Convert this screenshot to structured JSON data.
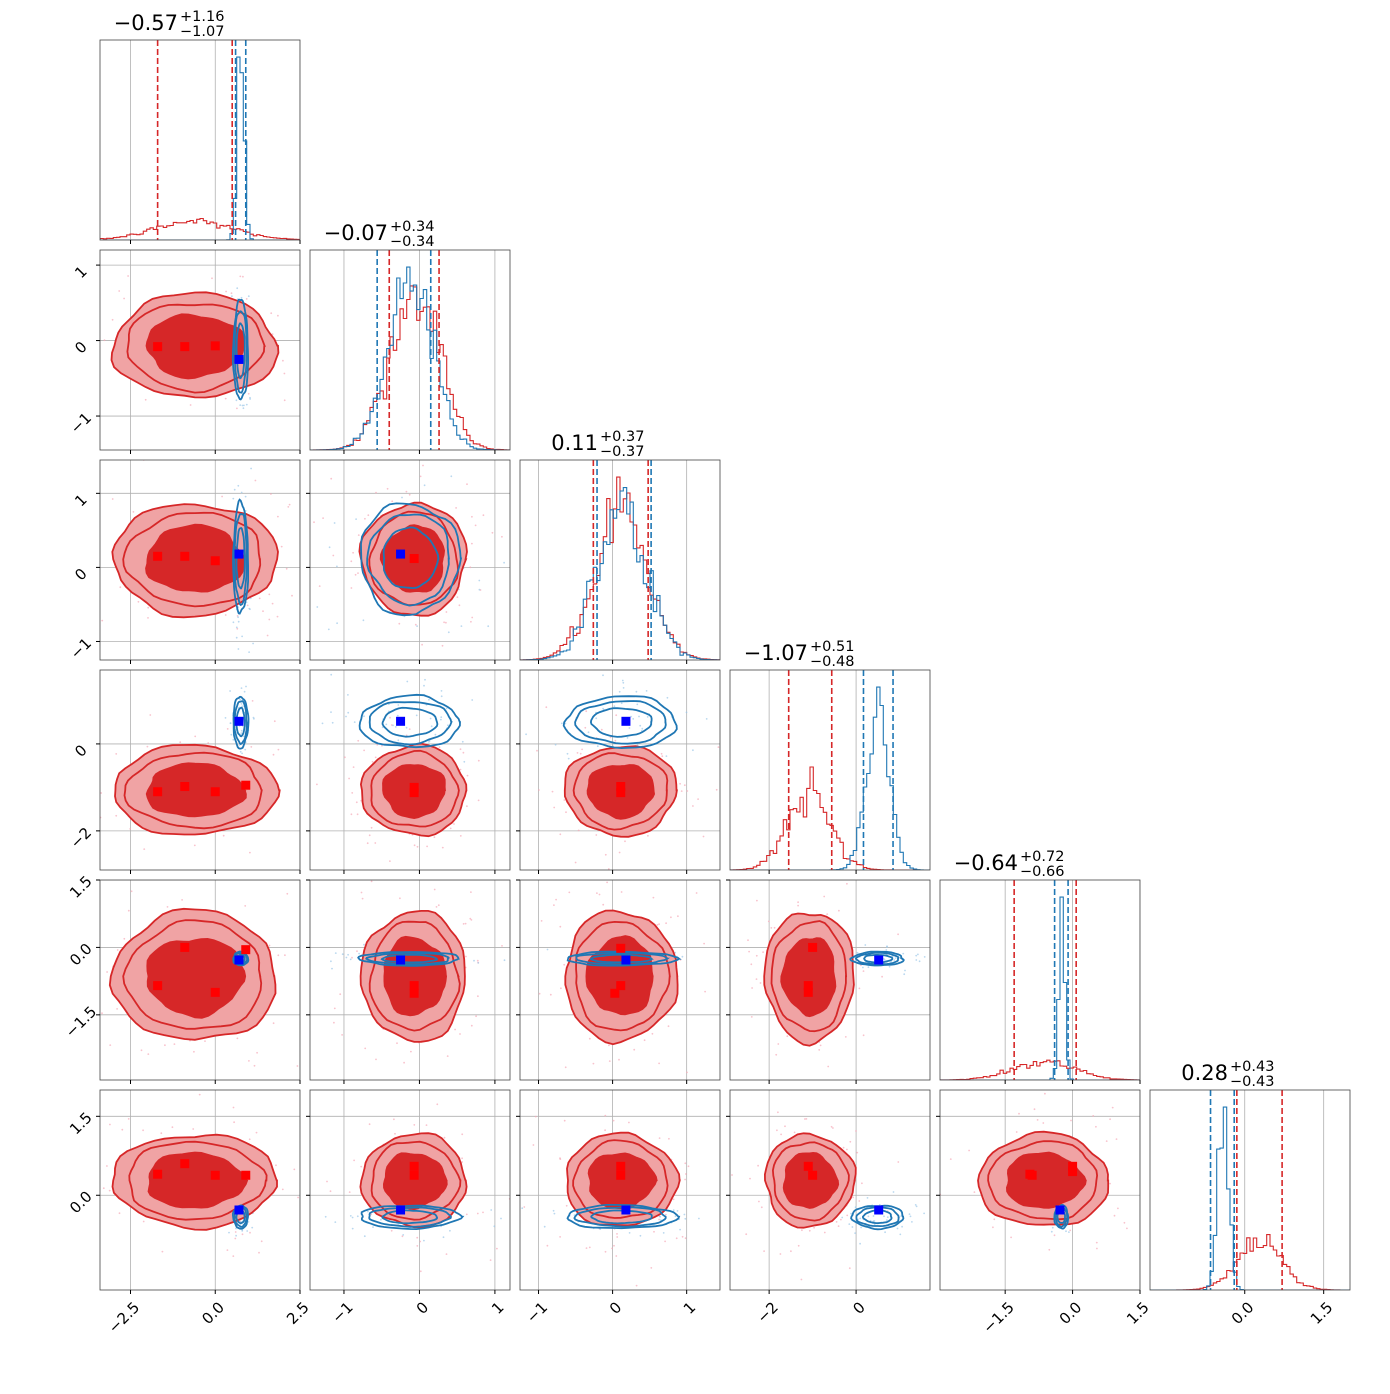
{
  "chart_data": {
    "type": "corner",
    "n_params": 6,
    "grid": true,
    "colors": {
      "red": "#d62728",
      "red_fill_outer": "#f0a3a4",
      "red_fill_mid": "#e45759",
      "blue": "#1f77b4",
      "truth_red": "#ff0000",
      "truth_blue": "#0000ff",
      "axis": "#444444",
      "grid": "#b0b0b0"
    },
    "params": [
      {
        "title_value": "−0.57",
        "title_plus": "+1.16",
        "title_minus": "−1.07",
        "range": [
          -3.4,
          2.5
        ],
        "ticks": [
          -2.5,
          0.0,
          2.5
        ],
        "tick_labels": [
          "−2.5",
          "0.0",
          "2.5"
        ],
        "red": {
          "mean": -0.6,
          "sd": 1.15,
          "q": [
            -1.7,
            0.5
          ]
        },
        "blue": {
          "mean": 0.75,
          "sd": 0.1,
          "q": [
            0.6,
            0.9
          ]
        }
      },
      {
        "title_value": "−0.07",
        "title_plus": "+0.34",
        "title_minus": "−0.34",
        "range": [
          -1.45,
          1.2
        ],
        "ticks": [
          -1,
          0,
          1
        ],
        "tick_labels": [
          "−1",
          "0",
          "1"
        ],
        "red": {
          "mean": -0.07,
          "sd": 0.33,
          "q": [
            -0.4,
            0.26
          ]
        },
        "blue": {
          "mean": -0.13,
          "sd": 0.3,
          "q": [
            -0.56,
            0.15
          ]
        }
      },
      {
        "title_value": "0.11",
        "title_plus": "+0.37",
        "title_minus": "−0.37",
        "range": [
          -1.25,
          1.45
        ],
        "ticks": [
          -1,
          0,
          1
        ],
        "tick_labels": [
          "−1",
          "0",
          "1"
        ],
        "red": {
          "mean": 0.11,
          "sd": 0.36,
          "q": [
            -0.26,
            0.48
          ]
        },
        "blue": {
          "mean": 0.12,
          "sd": 0.34,
          "q": [
            -0.21,
            0.52
          ]
        }
      },
      {
        "title_value": "−1.07",
        "title_plus": "+0.51",
        "title_minus": "−0.48",
        "range": [
          -2.9,
          1.7
        ],
        "ticks": [
          -2,
          0
        ],
        "tick_labels": [
          "−2",
          "0"
        ],
        "red": {
          "mean": -1.07,
          "sd": 0.49,
          "q": [
            -1.55,
            -0.56
          ]
        },
        "blue": {
          "mean": 0.5,
          "sd": 0.27,
          "q": [
            0.17,
            0.85
          ]
        }
      },
      {
        "title_value": "−0.64",
        "title_plus": "+0.72",
        "title_minus": "−0.66",
        "range": [
          -2.95,
          1.5
        ],
        "ticks": [
          -1.5,
          0.0,
          1.5
        ],
        "tick_labels": [
          "−1.5",
          "0.0",
          "1.5"
        ],
        "red": {
          "mean": -0.64,
          "sd": 0.69,
          "q": [
            -1.3,
            0.08
          ]
        },
        "blue": {
          "mean": -0.25,
          "sd": 0.07,
          "q": [
            -0.4,
            -0.1
          ]
        }
      },
      {
        "title_value": "0.28",
        "title_plus": "+0.43",
        "title_minus": "−0.43",
        "range": [
          -1.8,
          2.0
        ],
        "ticks": [
          0.0,
          1.5
        ],
        "tick_labels": [
          "0.0",
          "1.5"
        ],
        "red": {
          "mean": 0.28,
          "sd": 0.42,
          "q": [
            -0.15,
            0.71
          ]
        },
        "blue": {
          "mean": -0.41,
          "sd": 0.1,
          "q": [
            -0.65,
            -0.2
          ]
        }
      }
    ],
    "truth_blue": [
      0.7,
      -0.25,
      0.18,
      0.52,
      -0.28,
      -0.28
    ],
    "truth_red_markers": [
      {
        "i": 1,
        "j": 0,
        "pts": [
          [
            -1.7,
            -0.08
          ],
          [
            -0.9,
            -0.08
          ],
          [
            0.0,
            -0.07
          ]
        ]
      },
      {
        "i": 2,
        "j": 0,
        "pts": [
          [
            -1.7,
            0.15
          ],
          [
            -0.9,
            0.15
          ],
          [
            0.0,
            0.09
          ]
        ]
      },
      {
        "i": 2,
        "j": 1,
        "pts": [
          [
            -0.07,
            0.12
          ]
        ]
      },
      {
        "i": 3,
        "j": 0,
        "pts": [
          [
            -1.7,
            -1.1
          ],
          [
            -0.9,
            -0.98
          ],
          [
            0.0,
            -1.1
          ],
          [
            0.9,
            -0.95
          ]
        ]
      },
      {
        "i": 3,
        "j": 1,
        "pts": [
          [
            -0.07,
            -1.0
          ],
          [
            -0.07,
            -1.12
          ]
        ]
      },
      {
        "i": 3,
        "j": 2,
        "pts": [
          [
            0.11,
            -0.98
          ],
          [
            0.11,
            -1.12
          ]
        ]
      },
      {
        "i": 4,
        "j": 0,
        "pts": [
          [
            -1.7,
            -0.85
          ],
          [
            -0.9,
            0.0
          ],
          [
            0.0,
            -1.0
          ],
          [
            0.9,
            -0.05
          ]
        ]
      },
      {
        "i": 4,
        "j": 1,
        "pts": [
          [
            -0.07,
            -0.85
          ],
          [
            -0.07,
            -1.02
          ]
        ]
      },
      {
        "i": 4,
        "j": 2,
        "pts": [
          [
            0.11,
            -0.02
          ],
          [
            0.11,
            -0.85
          ],
          [
            0.03,
            -1.02
          ]
        ]
      },
      {
        "i": 4,
        "j": 3,
        "pts": [
          [
            -1.0,
            0.0
          ],
          [
            -1.1,
            -0.85
          ],
          [
            -1.1,
            -1.0
          ]
        ]
      },
      {
        "i": 5,
        "j": 0,
        "pts": [
          [
            -1.7,
            0.4
          ],
          [
            -0.9,
            0.6
          ],
          [
            0.0,
            0.38
          ],
          [
            0.9,
            0.38
          ]
        ]
      },
      {
        "i": 5,
        "j": 1,
        "pts": [
          [
            -0.07,
            0.38
          ],
          [
            -0.07,
            0.55
          ]
        ]
      },
      {
        "i": 5,
        "j": 2,
        "pts": [
          [
            0.11,
            0.38
          ],
          [
            0.11,
            0.55
          ]
        ]
      },
      {
        "i": 5,
        "j": 3,
        "pts": [
          [
            -1.0,
            0.38
          ],
          [
            -1.1,
            0.55
          ]
        ]
      },
      {
        "i": 5,
        "j": 4,
        "pts": [
          [
            -0.9,
            0.38
          ],
          [
            -0.95,
            0.4
          ],
          [
            0.0,
            0.45
          ],
          [
            0.0,
            0.55
          ]
        ]
      }
    ]
  }
}
